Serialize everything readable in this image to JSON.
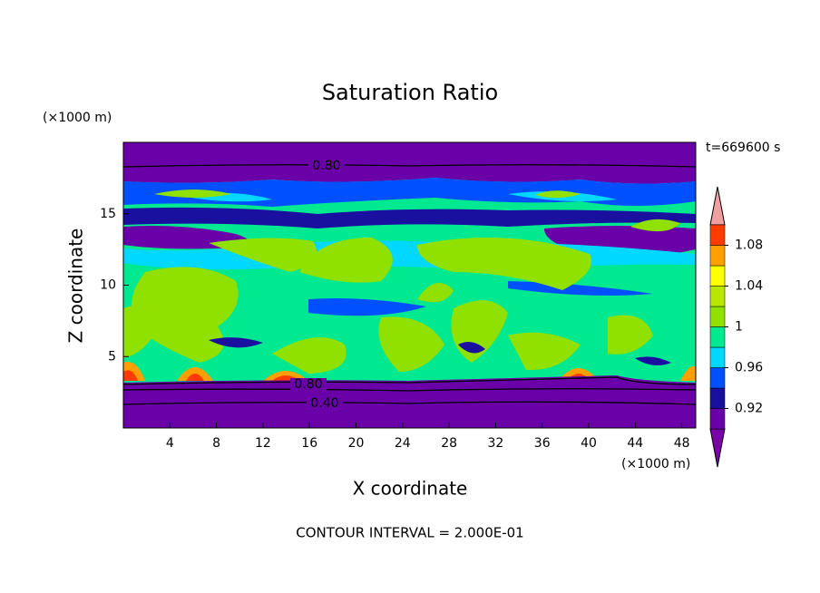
{
  "chart_data": {
    "type": "contour",
    "title": "Saturation Ratio",
    "xlabel": "X coordinate",
    "ylabel": "Z coordinate",
    "x_unit": "(×1000 m)",
    "y_unit": "(×1000 m)",
    "time_label": "t=669600 s",
    "footer": "CONTOUR INTERVAL = 2.000E-01",
    "xlim": [
      0,
      49.2
    ],
    "ylim": [
      0,
      20
    ],
    "xticks": [
      4,
      8,
      12,
      16,
      20,
      24,
      28,
      32,
      36,
      40,
      44,
      48
    ],
    "yticks": [
      5,
      10,
      15
    ],
    "contour_labels": [
      {
        "value": 0.8,
        "label": "0.80"
      },
      {
        "value": 0.8,
        "label": "0.80"
      },
      {
        "value": 0.4,
        "label": "0.40"
      }
    ],
    "colorbar": {
      "levels": [
        0.9,
        0.92,
        0.94,
        0.96,
        0.98,
        1,
        1.02,
        1.04,
        1.06,
        1.08,
        1.1
      ],
      "colors": [
        "#7a00a8",
        "#6a00a8",
        "#1a10a0",
        "#0050ff",
        "#00d8ff",
        "#00e890",
        "#90e000",
        "#b8e800",
        "#ffff00",
        "#ffa000",
        "#ff3c00",
        "#f0a0a0"
      ],
      "ticks": [
        0.92,
        0.96,
        1,
        1.04,
        1.08
      ]
    }
  }
}
